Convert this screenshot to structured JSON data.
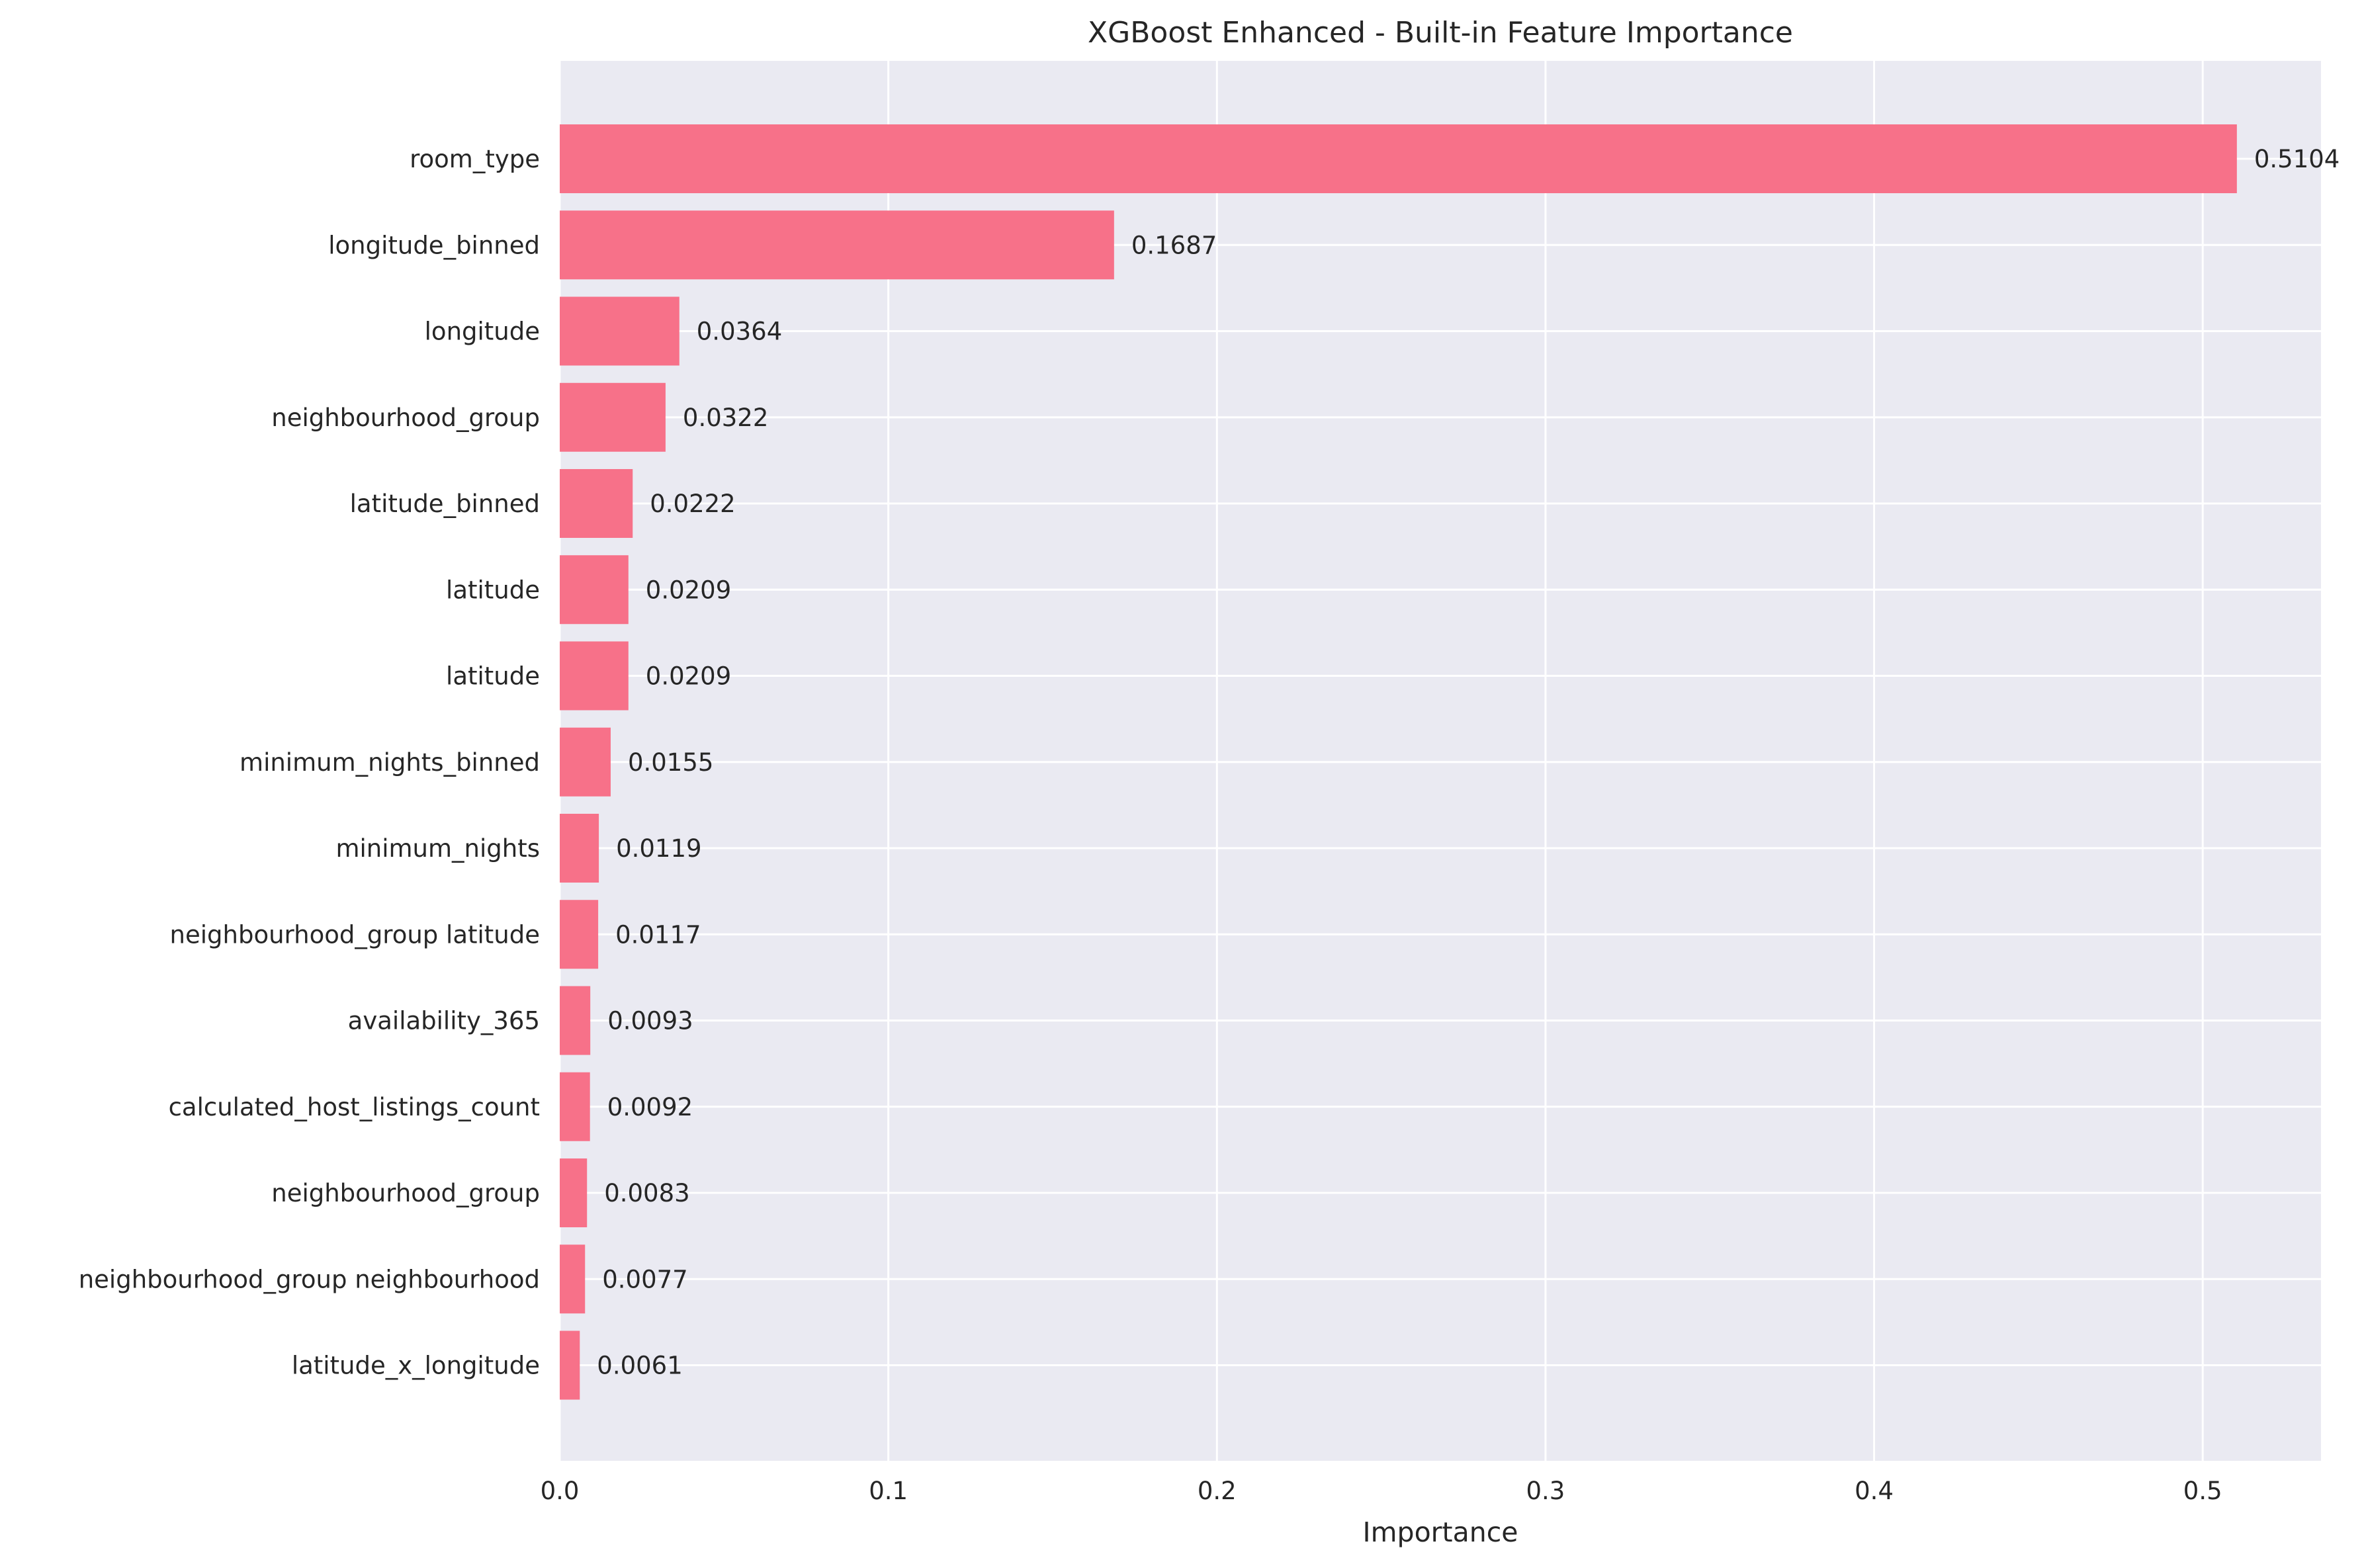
{
  "chart_data": {
    "type": "bar",
    "orientation": "horizontal",
    "title": "XGBoost Enhanced - Built-in Feature Importance",
    "xlabel": "Importance",
    "ylabel": "",
    "categories": [
      "room_type",
      "longitude_binned",
      "longitude",
      "neighbourhood_group",
      "latitude_binned",
      "latitude",
      "latitude",
      "minimum_nights_binned",
      "minimum_nights",
      "neighbourhood_group latitude",
      "availability_365",
      "calculated_host_listings_count",
      "neighbourhood_group",
      "neighbourhood_group neighbourhood",
      "latitude_x_longitude"
    ],
    "values": [
      0.5104,
      0.1687,
      0.0364,
      0.0322,
      0.0222,
      0.0209,
      0.0209,
      0.0155,
      0.0119,
      0.0117,
      0.0093,
      0.0092,
      0.0083,
      0.0077,
      0.0061
    ],
    "value_labels": [
      "0.5104",
      "0.1687",
      "0.0364",
      "0.0322",
      "0.0222",
      "0.0209",
      "0.0209",
      "0.0155",
      "0.0119",
      "0.0117",
      "0.0093",
      "0.0092",
      "0.0083",
      "0.0077",
      "0.0061"
    ],
    "xlim": [
      0,
      0.536
    ],
    "xticks": [
      0.0,
      0.1,
      0.2,
      0.3,
      0.4,
      0.5
    ],
    "xtick_labels": [
      "0.0",
      "0.1",
      "0.2",
      "0.3",
      "0.4",
      "0.5"
    ],
    "grid": true,
    "colors": {
      "bar": "#f77189",
      "plot_background": "#eaeaf2",
      "grid": "#ffffff",
      "text": "#262626"
    }
  }
}
